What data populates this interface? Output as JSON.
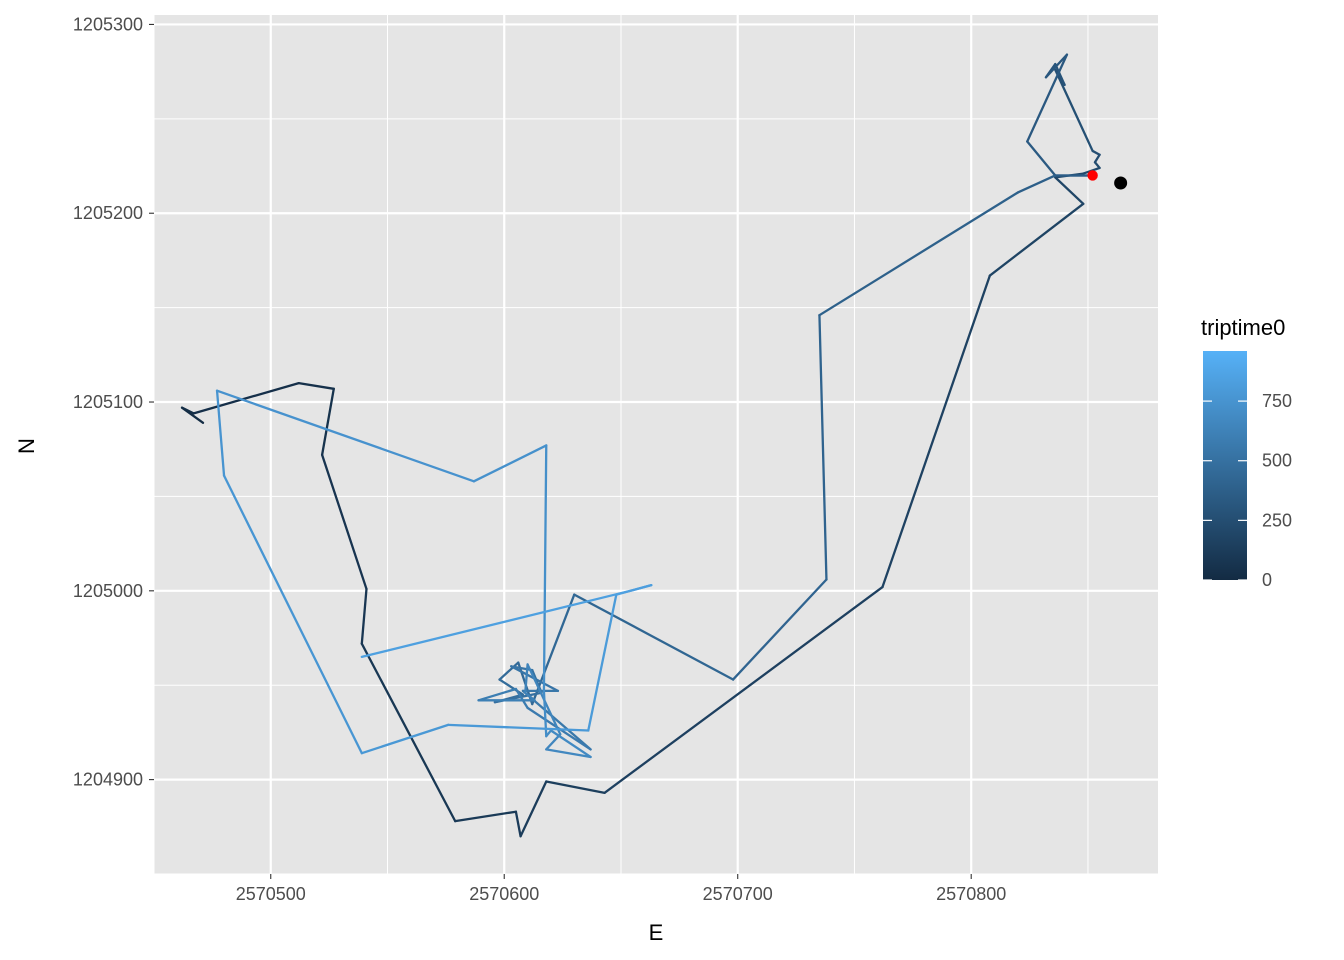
{
  "chart_data": {
    "type": "line",
    "xlabel": "E",
    "ylabel": "N",
    "xlim": [
      2570450,
      2570880
    ],
    "ylim": [
      1204850,
      1205305
    ],
    "x_ticks": [
      2570500,
      2570600,
      2570700,
      2570800
    ],
    "x_tick_labels": [
      "2570500",
      "2570600",
      "2570700",
      "2570800"
    ],
    "y_ticks": [
      1204900,
      1205000,
      1205100,
      1205200,
      1205300
    ],
    "y_tick_labels": [
      "1204900",
      "1205000",
      "1205100",
      "1205200",
      "1205300"
    ],
    "grid": true,
    "background": "#e5e5e5",
    "legend": {
      "title": "triptime0",
      "position": "right",
      "min": 0,
      "max": 960,
      "breaks": [
        0,
        250,
        500,
        750
      ],
      "break_labels": [
        "0",
        "250",
        "500",
        "750"
      ],
      "low_color": "#132b43",
      "high_color": "#56b1f7"
    },
    "path": {
      "x": [
        2570471,
        2570462,
        2570467,
        2570512,
        2570527,
        2570522,
        2570541,
        2570539,
        2570579,
        2570605,
        2570607,
        2570618,
        2570643,
        2570762,
        2570808,
        2570848,
        2570836,
        2570848,
        2570855,
        2570853,
        2570855,
        2570852,
        2570836,
        2570840,
        2570836,
        2570832,
        2570841,
        2570824,
        2570836,
        2570852,
        2570836,
        2570820,
        2570735,
        2570738,
        2570698,
        2570630,
        2570612,
        2570606,
        2570598,
        2570608,
        2570596,
        2570616,
        2570612,
        2570603,
        2570623,
        2570608,
        2570637,
        2570610,
        2570605,
        2570589,
        2570613,
        2570609,
        2570610,
        2570624,
        2570618,
        2570637,
        2570620,
        2570618,
        2570617,
        2570618,
        2570587,
        2570477,
        2570480,
        2570539,
        2570576,
        2570636,
        2570648,
        2570663,
        2570654,
        2570539
      ],
      "y": [
        1205089,
        1205097,
        1205094,
        1205110,
        1205107,
        1205072,
        1205001,
        1204972,
        1204878,
        1204883,
        1204870,
        1204899,
        1204893,
        1205002,
        1205167,
        1205205,
        1205219,
        1205221,
        1205224,
        1205227,
        1205231,
        1205233,
        1205276,
        1205268,
        1205279,
        1205272,
        1205284,
        1205238,
        1205220,
        1205220,
        1205220,
        1205211,
        1205146,
        1205006,
        1204953,
        1204998,
        1204940,
        1204962,
        1204953,
        1204945,
        1204941,
        1204946,
        1204958,
        1204960,
        1204947,
        1204947,
        1204916,
        1204938,
        1204948,
        1204942,
        1204942,
        1204946,
        1204961,
        1204924,
        1204916,
        1204912,
        1204926,
        1204923,
        1204947,
        1205077,
        1205058,
        1205106,
        1205061,
        1204914,
        1204929,
        1204926,
        1204998,
        1205003,
        1205000,
        1204965
      ],
      "t": [
        0,
        12,
        24,
        37,
        49,
        61,
        73,
        86,
        98,
        110,
        122,
        135,
        147,
        159,
        171,
        184,
        196,
        208,
        220,
        233,
        245,
        257,
        269,
        282,
        294,
        306,
        318,
        331,
        343,
        355,
        367,
        380,
        392,
        404,
        416,
        429,
        441,
        453,
        465,
        478,
        490,
        502,
        514,
        527,
        539,
        551,
        563,
        576,
        588,
        600,
        612,
        625,
        637,
        649,
        661,
        674,
        686,
        698,
        710,
        723,
        735,
        747,
        759,
        772,
        784,
        796,
        808,
        821,
        833,
        845
      ]
    },
    "points": [
      {
        "x": 2570852,
        "y": 1205220,
        "color": "#ff0000",
        "size": 4
      },
      {
        "x": 2570864,
        "y": 1205216,
        "color": "#000000",
        "size": 5
      }
    ]
  }
}
